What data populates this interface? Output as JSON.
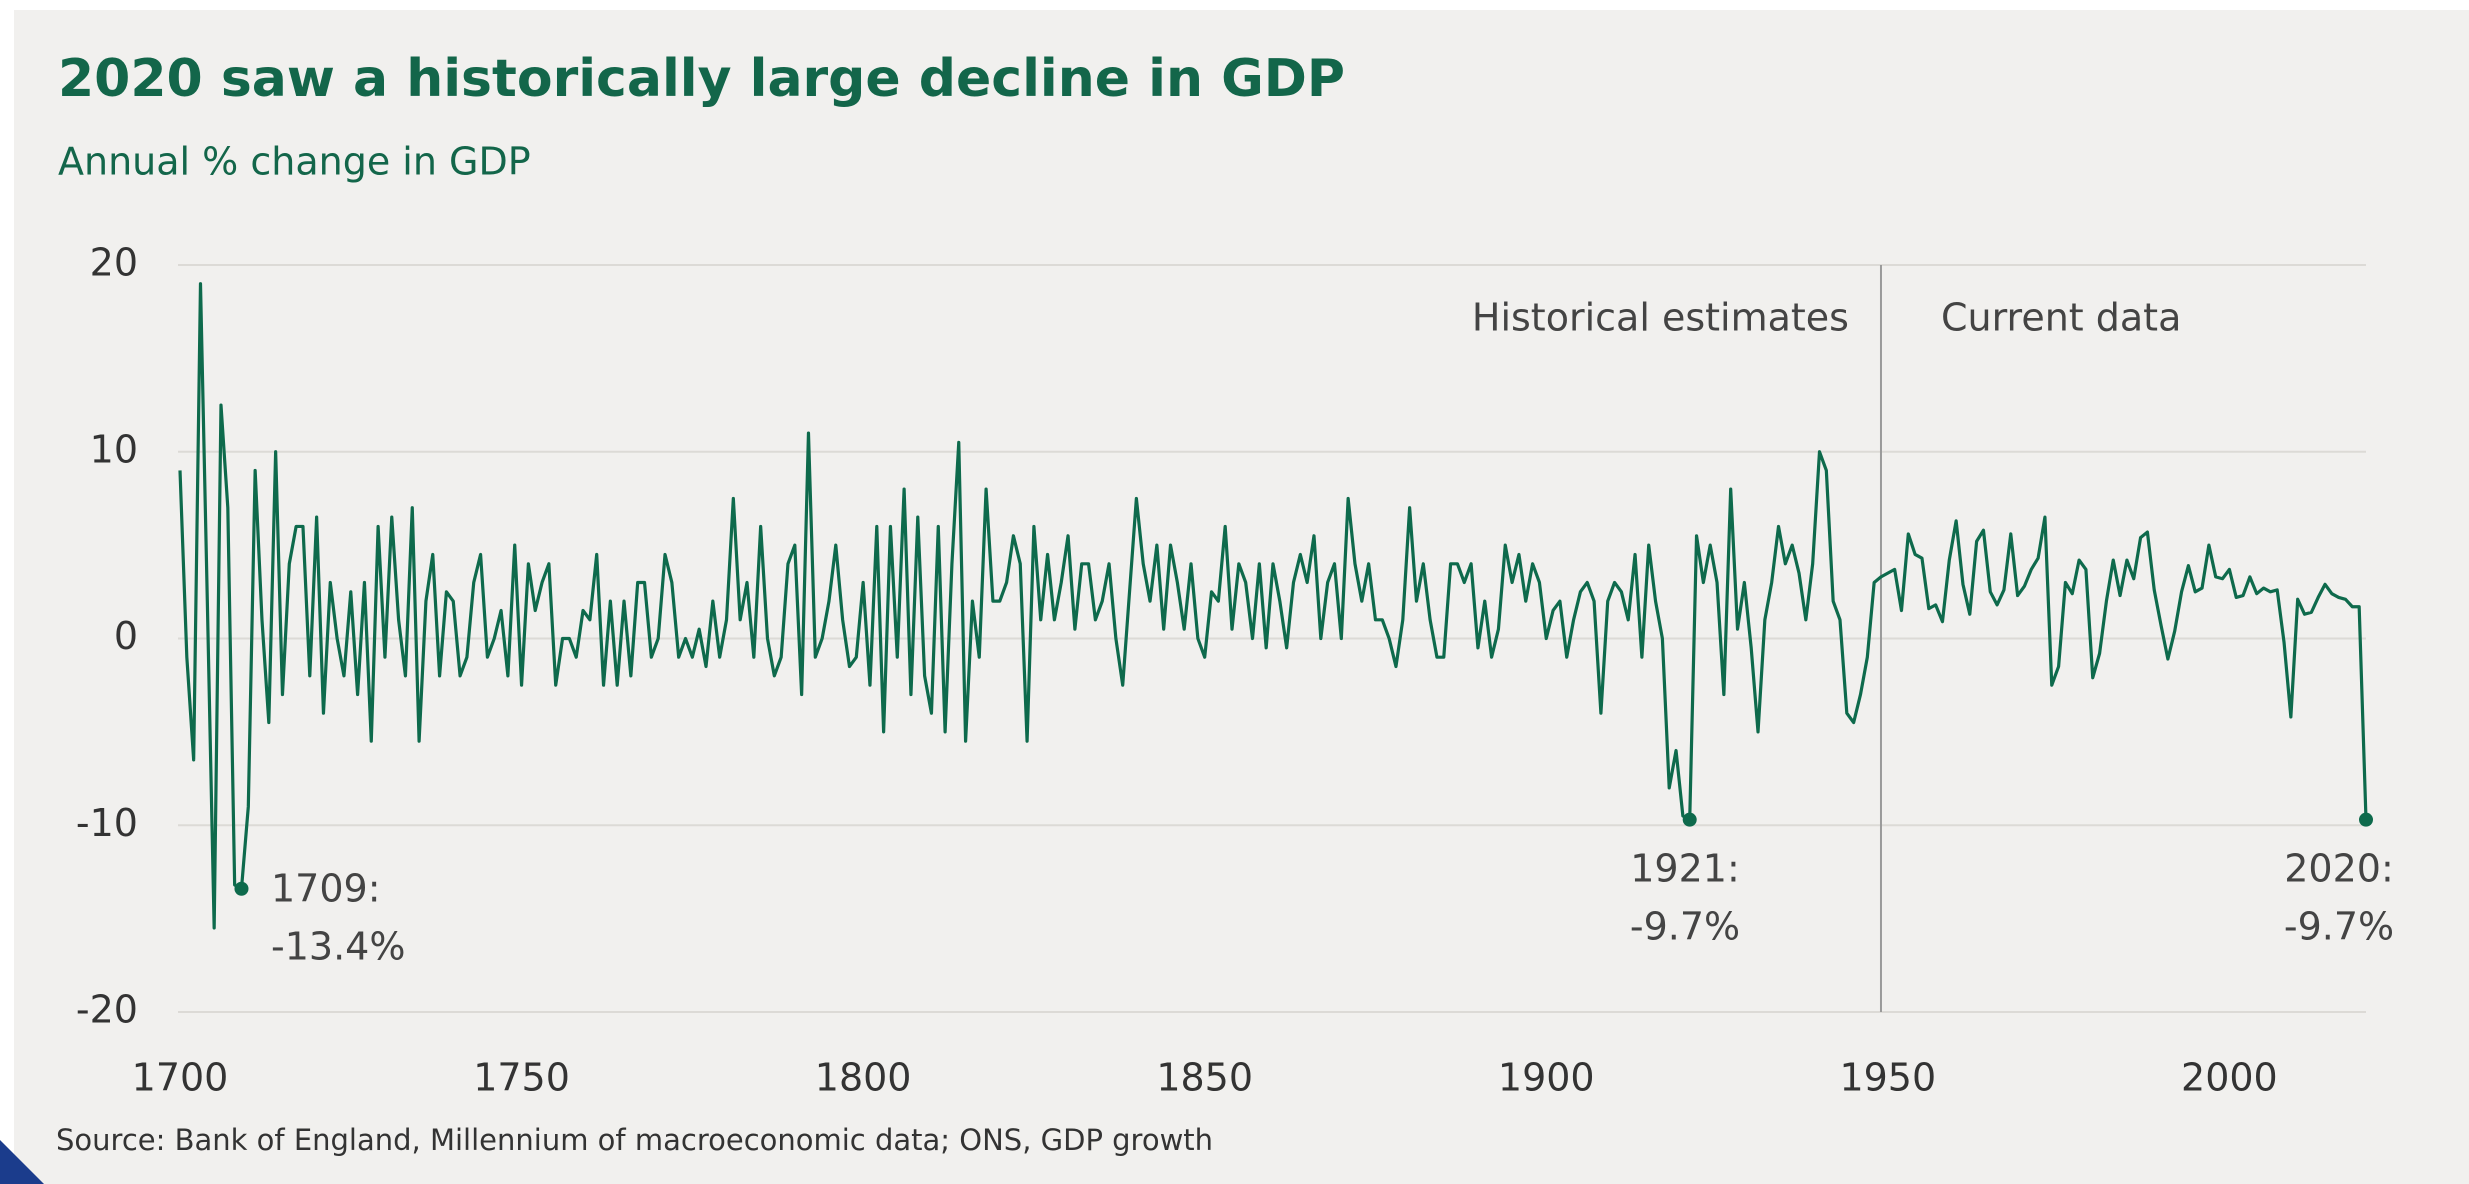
{
  "chart_data": {
    "type": "line",
    "title": "2020 saw a historically large decline in GDP",
    "subtitle": "Annual % change in GDP",
    "source": "Source: Bank of England, Millennium of macroeconomic data; ONS, GDP growth",
    "x": [
      1700,
      1701,
      1702,
      1703,
      1704,
      1705,
      1706,
      1707,
      1708,
      1709,
      1710,
      1711,
      1712,
      1713,
      1714,
      1715,
      1716,
      1717,
      1718,
      1719,
      1720,
      1721,
      1722,
      1723,
      1724,
      1725,
      1726,
      1727,
      1728,
      1729,
      1730,
      1731,
      1732,
      1733,
      1734,
      1735,
      1736,
      1737,
      1738,
      1739,
      1740,
      1741,
      1742,
      1743,
      1744,
      1745,
      1746,
      1747,
      1748,
      1749,
      1750,
      1751,
      1752,
      1753,
      1754,
      1755,
      1756,
      1757,
      1758,
      1759,
      1760,
      1761,
      1762,
      1763,
      1764,
      1765,
      1766,
      1767,
      1768,
      1769,
      1770,
      1771,
      1772,
      1773,
      1774,
      1775,
      1776,
      1777,
      1778,
      1779,
      1780,
      1781,
      1782,
      1783,
      1784,
      1785,
      1786,
      1787,
      1788,
      1789,
      1790,
      1791,
      1792,
      1793,
      1794,
      1795,
      1796,
      1797,
      1798,
      1799,
      1800,
      1801,
      1802,
      1803,
      1804,
      1805,
      1806,
      1807,
      1808,
      1809,
      1810,
      1811,
      1812,
      1813,
      1814,
      1815,
      1816,
      1817,
      1818,
      1819,
      1820,
      1821,
      1822,
      1823,
      1824,
      1825,
      1826,
      1827,
      1828,
      1829,
      1830,
      1831,
      1832,
      1833,
      1834,
      1835,
      1836,
      1837,
      1838,
      1839,
      1840,
      1841,
      1842,
      1843,
      1844,
      1845,
      1846,
      1847,
      1848,
      1849,
      1850,
      1851,
      1852,
      1853,
      1854,
      1855,
      1856,
      1857,
      1858,
      1859,
      1860,
      1861,
      1862,
      1863,
      1864,
      1865,
      1866,
      1867,
      1868,
      1869,
      1870,
      1871,
      1872,
      1873,
      1874,
      1875,
      1876,
      1877,
      1878,
      1879,
      1880,
      1881,
      1882,
      1883,
      1884,
      1885,
      1886,
      1887,
      1888,
      1889,
      1890,
      1891,
      1892,
      1893,
      1894,
      1895,
      1896,
      1897,
      1898,
      1899,
      1900,
      1901,
      1902,
      1903,
      1904,
      1905,
      1906,
      1907,
      1908,
      1909,
      1910,
      1911,
      1912,
      1913,
      1914,
      1915,
      1916,
      1917,
      1918,
      1919,
      1920,
      1921,
      1922,
      1923,
      1924,
      1925,
      1926,
      1927,
      1928,
      1929,
      1930,
      1931,
      1932,
      1933,
      1934,
      1935,
      1936,
      1937,
      1938,
      1939,
      1940,
      1941,
      1942,
      1943,
      1944,
      1945,
      1946,
      1947,
      1948,
      1949,
      1950,
      1951,
      1952,
      1953,
      1954,
      1955,
      1956,
      1957,
      1958,
      1959,
      1960,
      1961,
      1962,
      1963,
      1964,
      1965,
      1966,
      1967,
      1968,
      1969,
      1970,
      1971,
      1972,
      1973,
      1974,
      1975,
      1976,
      1977,
      1978,
      1979,
      1980,
      1981,
      1982,
      1983,
      1984,
      1985,
      1986,
      1987,
      1988,
      1989,
      1990,
      1991,
      1992,
      1993,
      1994,
      1995,
      1996,
      1997,
      1998,
      1999,
      2000,
      2001,
      2002,
      2003,
      2004,
      2005,
      2006,
      2007,
      2008,
      2009,
      2010,
      2011,
      2012,
      2013,
      2014,
      2015,
      2016,
      2017,
      2018,
      2019,
      2020
    ],
    "series": [
      {
        "color": "#0e6a4c",
        "values": [
          9,
          -1,
          -6.5,
          19,
          2,
          -15.5,
          12.5,
          7,
          -13.2,
          -13.4,
          -9,
          9,
          1,
          -4.5,
          10,
          -3,
          4,
          6,
          6,
          -2,
          6.5,
          -4,
          3,
          0,
          -2,
          2.5,
          -3,
          3,
          -5.5,
          6,
          -1,
          6.5,
          1,
          -2,
          7,
          -5.5,
          2,
          4.5,
          -2,
          2.5,
          2,
          -2,
          -1,
          3,
          4.5,
          -1,
          0,
          1.5,
          -2,
          5,
          -2.5,
          4,
          1.5,
          3,
          4,
          -2.5,
          0,
          0,
          -1,
          1.5,
          1,
          4.5,
          -2.5,
          2,
          -2.5,
          2,
          -2,
          3,
          3,
          -1,
          0,
          4.5,
          3,
          -1,
          0,
          -1,
          0.5,
          -1.5,
          2,
          -1,
          1,
          7.5,
          1,
          3,
          -1,
          6,
          0,
          -2,
          -1,
          4,
          5,
          -3,
          11,
          -1,
          0,
          2,
          5,
          1,
          -1.5,
          -1,
          3,
          -2.5,
          6,
          -5,
          6,
          -1,
          8,
          -3,
          6.5,
          -2,
          -4,
          6,
          -5,
          4,
          10.5,
          -5.5,
          2,
          -1,
          8,
          2,
          2,
          3,
          5.5,
          4,
          -5.5,
          6,
          1,
          4.5,
          1,
          3,
          5.5,
          0.5,
          4,
          4,
          1,
          2,
          4,
          0,
          -2.5,
          2.5,
          7.5,
          4,
          2,
          5,
          0.5,
          5,
          3,
          0.5,
          4,
          0,
          -1,
          2.5,
          2,
          6,
          0.5,
          4,
          3,
          0,
          4,
          -0.5,
          4,
          2,
          -0.5,
          3,
          4.5,
          3,
          5.5,
          0,
          3,
          4,
          0,
          7.5,
          4,
          2,
          4,
          1,
          1,
          0,
          -1.5,
          1,
          7,
          2,
          4,
          1,
          -1,
          -1,
          4,
          4,
          3,
          4,
          -0.5,
          2,
          -1,
          0.5,
          5,
          3,
          4.5,
          2,
          4,
          3,
          0,
          1.5,
          2,
          -1,
          1,
          2.5,
          3,
          2,
          -4,
          2,
          3,
          2.5,
          1,
          4.5,
          -1,
          5,
          2,
          0,
          -8,
          -6,
          -9.5,
          -9.7,
          5.5,
          3,
          5,
          3,
          -3,
          8,
          0.5,
          3,
          -0.5,
          -5,
          1,
          3,
          6,
          4,
          5,
          3.5,
          1,
          4,
          10,
          9,
          2,
          1,
          -4,
          -4.5,
          -3,
          -1,
          3,
          3.3,
          3.5,
          3.7,
          1.5,
          5.6,
          4.5,
          4.3,
          1.6,
          1.8,
          0.9,
          4.2,
          6.3,
          2.9,
          1.3,
          5.2,
          5.8,
          2.5,
          1.8,
          2.6,
          5.6,
          2.3,
          2.8,
          3.7,
          4.3,
          6.5,
          -2.5,
          -1.5,
          3,
          2.4,
          4.2,
          3.7,
          -2.1,
          -0.8,
          2,
          4.2,
          2.3,
          4.2,
          3.2,
          5.4,
          5.7,
          2.6,
          0.7,
          -1.1,
          0.4,
          2.5,
          3.9,
          2.5,
          2.7,
          5,
          3.3,
          3.2,
          3.7,
          2.2,
          2.3,
          3.3,
          2.4,
          2.7,
          2.5,
          2.6,
          -0.2,
          -4.2,
          2.1,
          1.3,
          1.4,
          2.2,
          2.9,
          2.4,
          2.2,
          2.1,
          1.7,
          1.7,
          -9.7
        ]
      }
    ],
    "xlim": [
      1700,
      2020
    ],
    "xticks": [
      1700,
      1750,
      1800,
      1850,
      1900,
      1950,
      2000
    ],
    "ylim": [
      -20,
      20
    ],
    "yticks": [
      -20,
      -10,
      0,
      10,
      20
    ],
    "grid": true,
    "divider_x": 1949,
    "region_labels": [
      "Historical estimates",
      "Current data"
    ],
    "markers": [
      1709,
      1921,
      2020
    ],
    "annotations": [
      [
        "1709:",
        "-13.4%"
      ],
      [
        "1921:",
        "-9.7%"
      ],
      [
        "2020:",
        "-9.7%"
      ]
    ]
  }
}
